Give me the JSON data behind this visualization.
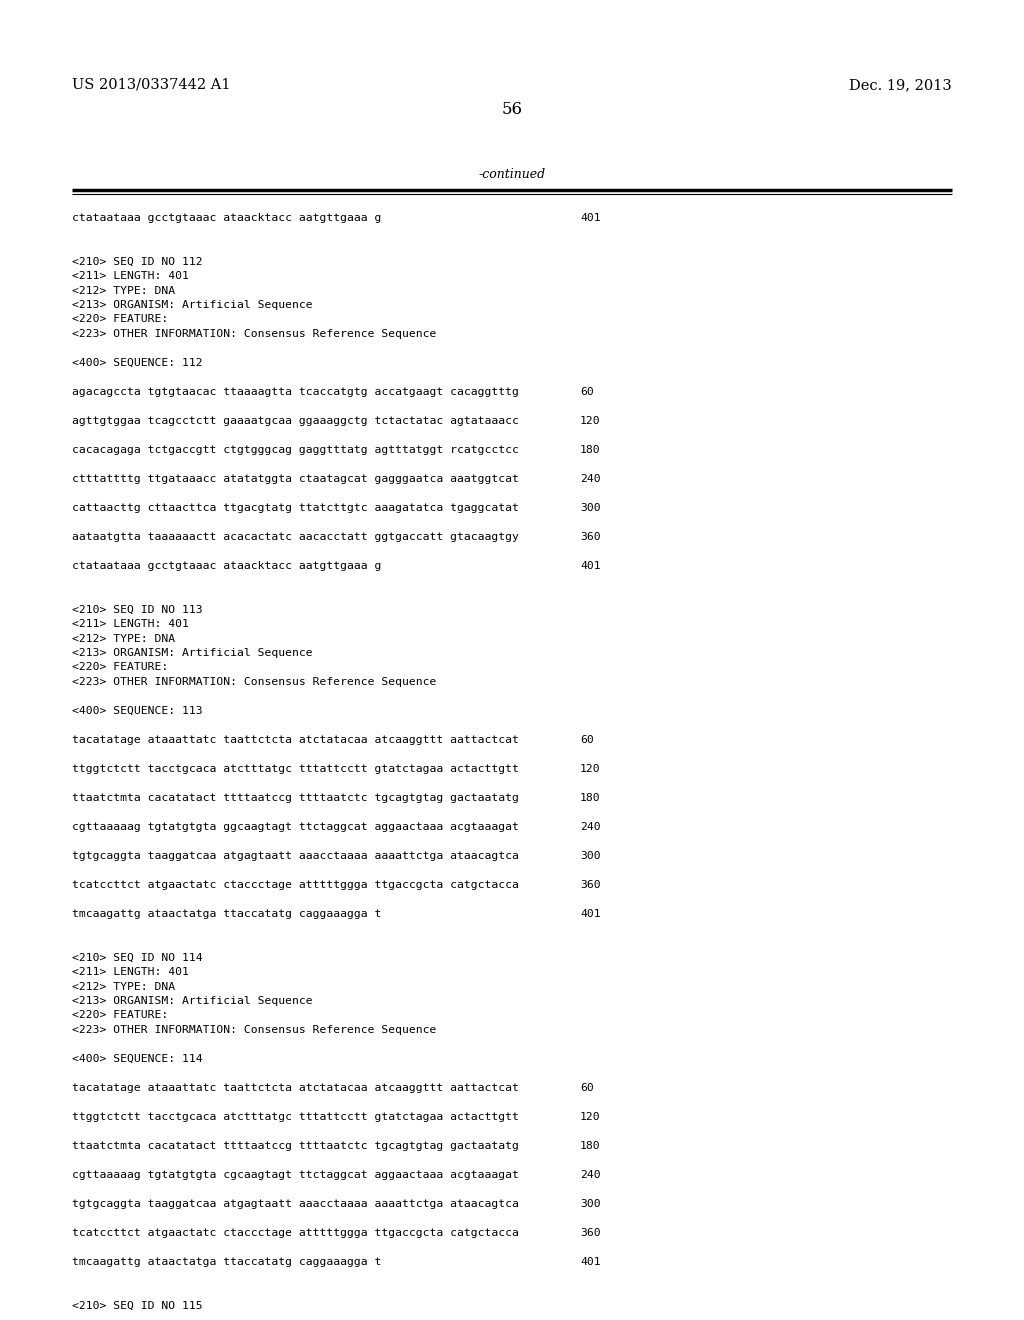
{
  "background_color": "#ffffff",
  "top_left_text": "US 2013/0337442 A1",
  "top_right_text": "Dec. 19, 2013",
  "page_number": "56",
  "continued_text": "-continued",
  "content_lines": [
    {
      "text": "ctataataaa gcctgtaaac ataacktacc aatgttgaaa g",
      "num": "401"
    },
    {
      "text": ""
    },
    {
      "text": ""
    },
    {
      "text": "<210> SEQ ID NO 112"
    },
    {
      "text": "<211> LENGTH: 401"
    },
    {
      "text": "<212> TYPE: DNA"
    },
    {
      "text": "<213> ORGANISM: Artificial Sequence"
    },
    {
      "text": "<220> FEATURE:"
    },
    {
      "text": "<223> OTHER INFORMATION: Consensus Reference Sequence"
    },
    {
      "text": ""
    },
    {
      "text": "<400> SEQUENCE: 112"
    },
    {
      "text": ""
    },
    {
      "text": "agacagccta tgtgtaacac ttaaaagtta tcaccatgtg accatgaagt cacaggtttg",
      "num": "60"
    },
    {
      "text": ""
    },
    {
      "text": "agttgtggaa tcagcctctt gaaaatgcaa ggaaaggctg tctactatac agtataaacc",
      "num": "120"
    },
    {
      "text": ""
    },
    {
      "text": "cacacagaga tctgaccgtt ctgtgggcag gaggtttatg agtttatggt rcatgcctcc",
      "num": "180"
    },
    {
      "text": ""
    },
    {
      "text": "ctttattttg ttgataaacc atatatggta ctaatagcat gagggaatca aaatggtcat",
      "num": "240"
    },
    {
      "text": ""
    },
    {
      "text": "cattaacttg cttaacttca ttgacgtatg ttatcttgtc aaagatatca tgaggcatat",
      "num": "300"
    },
    {
      "text": ""
    },
    {
      "text": "aataatgtta taaaaaactt acacactatc aacacctatt ggtgaccatt gtacaagtgy",
      "num": "360"
    },
    {
      "text": ""
    },
    {
      "text": "ctataataaa gcctgtaaac ataacktacc aatgttgaaa g",
      "num": "401"
    },
    {
      "text": ""
    },
    {
      "text": ""
    },
    {
      "text": "<210> SEQ ID NO 113"
    },
    {
      "text": "<211> LENGTH: 401"
    },
    {
      "text": "<212> TYPE: DNA"
    },
    {
      "text": "<213> ORGANISM: Artificial Sequence"
    },
    {
      "text": "<220> FEATURE:"
    },
    {
      "text": "<223> OTHER INFORMATION: Consensus Reference Sequence"
    },
    {
      "text": ""
    },
    {
      "text": "<400> SEQUENCE: 113"
    },
    {
      "text": ""
    },
    {
      "text": "tacatatage ataaattatc taattctcta atctatacaa atcaaggttt aattactcat",
      "num": "60"
    },
    {
      "text": ""
    },
    {
      "text": "ttggtctctt tacctgcaca atctttatgc tttattcctt gtatctagaa actacttgtt",
      "num": "120"
    },
    {
      "text": ""
    },
    {
      "text": "ttaatctmta cacatatact ttttaatccg ttttaatctc tgcagtgtag gactaatatg",
      "num": "180"
    },
    {
      "text": ""
    },
    {
      "text": "cgttaaaaag tgtatgtgta ggcaagtagt ttctaggcat aggaactaaa acgtaaagat",
      "num": "240"
    },
    {
      "text": ""
    },
    {
      "text": "tgtgcaggta taaggatcaa atgagtaatt aaacctaaaa aaaattctga ataacagtca",
      "num": "300"
    },
    {
      "text": ""
    },
    {
      "text": "tcatccttct atgaactatc ctaccctage atttttggga ttgaccgcta catgctacca",
      "num": "360"
    },
    {
      "text": ""
    },
    {
      "text": "tmcaagattg ataactatga ttaccatatg caggaaagga t",
      "num": "401"
    },
    {
      "text": ""
    },
    {
      "text": ""
    },
    {
      "text": "<210> SEQ ID NO 114"
    },
    {
      "text": "<211> LENGTH: 401"
    },
    {
      "text": "<212> TYPE: DNA"
    },
    {
      "text": "<213> ORGANISM: Artificial Sequence"
    },
    {
      "text": "<220> FEATURE:"
    },
    {
      "text": "<223> OTHER INFORMATION: Consensus Reference Sequence"
    },
    {
      "text": ""
    },
    {
      "text": "<400> SEQUENCE: 114"
    },
    {
      "text": ""
    },
    {
      "text": "tacatatage ataaattatc taattctcta atctatacaa atcaaggttt aattactcat",
      "num": "60"
    },
    {
      "text": ""
    },
    {
      "text": "ttggtctctt tacctgcaca atctttatgc tttattcctt gtatctagaa actacttgtt",
      "num": "120"
    },
    {
      "text": ""
    },
    {
      "text": "ttaatctmta cacatatact ttttaatccg ttttaatctc tgcagtgtag gactaatatg",
      "num": "180"
    },
    {
      "text": ""
    },
    {
      "text": "cgttaaaaag tgtatgtgta cgcaagtagt ttctaggcat aggaactaaa acgtaaagat",
      "num": "240"
    },
    {
      "text": ""
    },
    {
      "text": "tgtgcaggta taaggatcaa atgagtaatt aaacctaaaa aaaattctga ataacagtca",
      "num": "300"
    },
    {
      "text": ""
    },
    {
      "text": "tcatccttct atgaactatc ctaccctage atttttggga ttgaccgcta catgctacca",
      "num": "360"
    },
    {
      "text": ""
    },
    {
      "text": "tmcaagattg ataactatga ttaccatatg caggaaagga t",
      "num": "401"
    },
    {
      "text": ""
    },
    {
      "text": ""
    },
    {
      "text": "<210> SEQ ID NO 115"
    }
  ]
}
